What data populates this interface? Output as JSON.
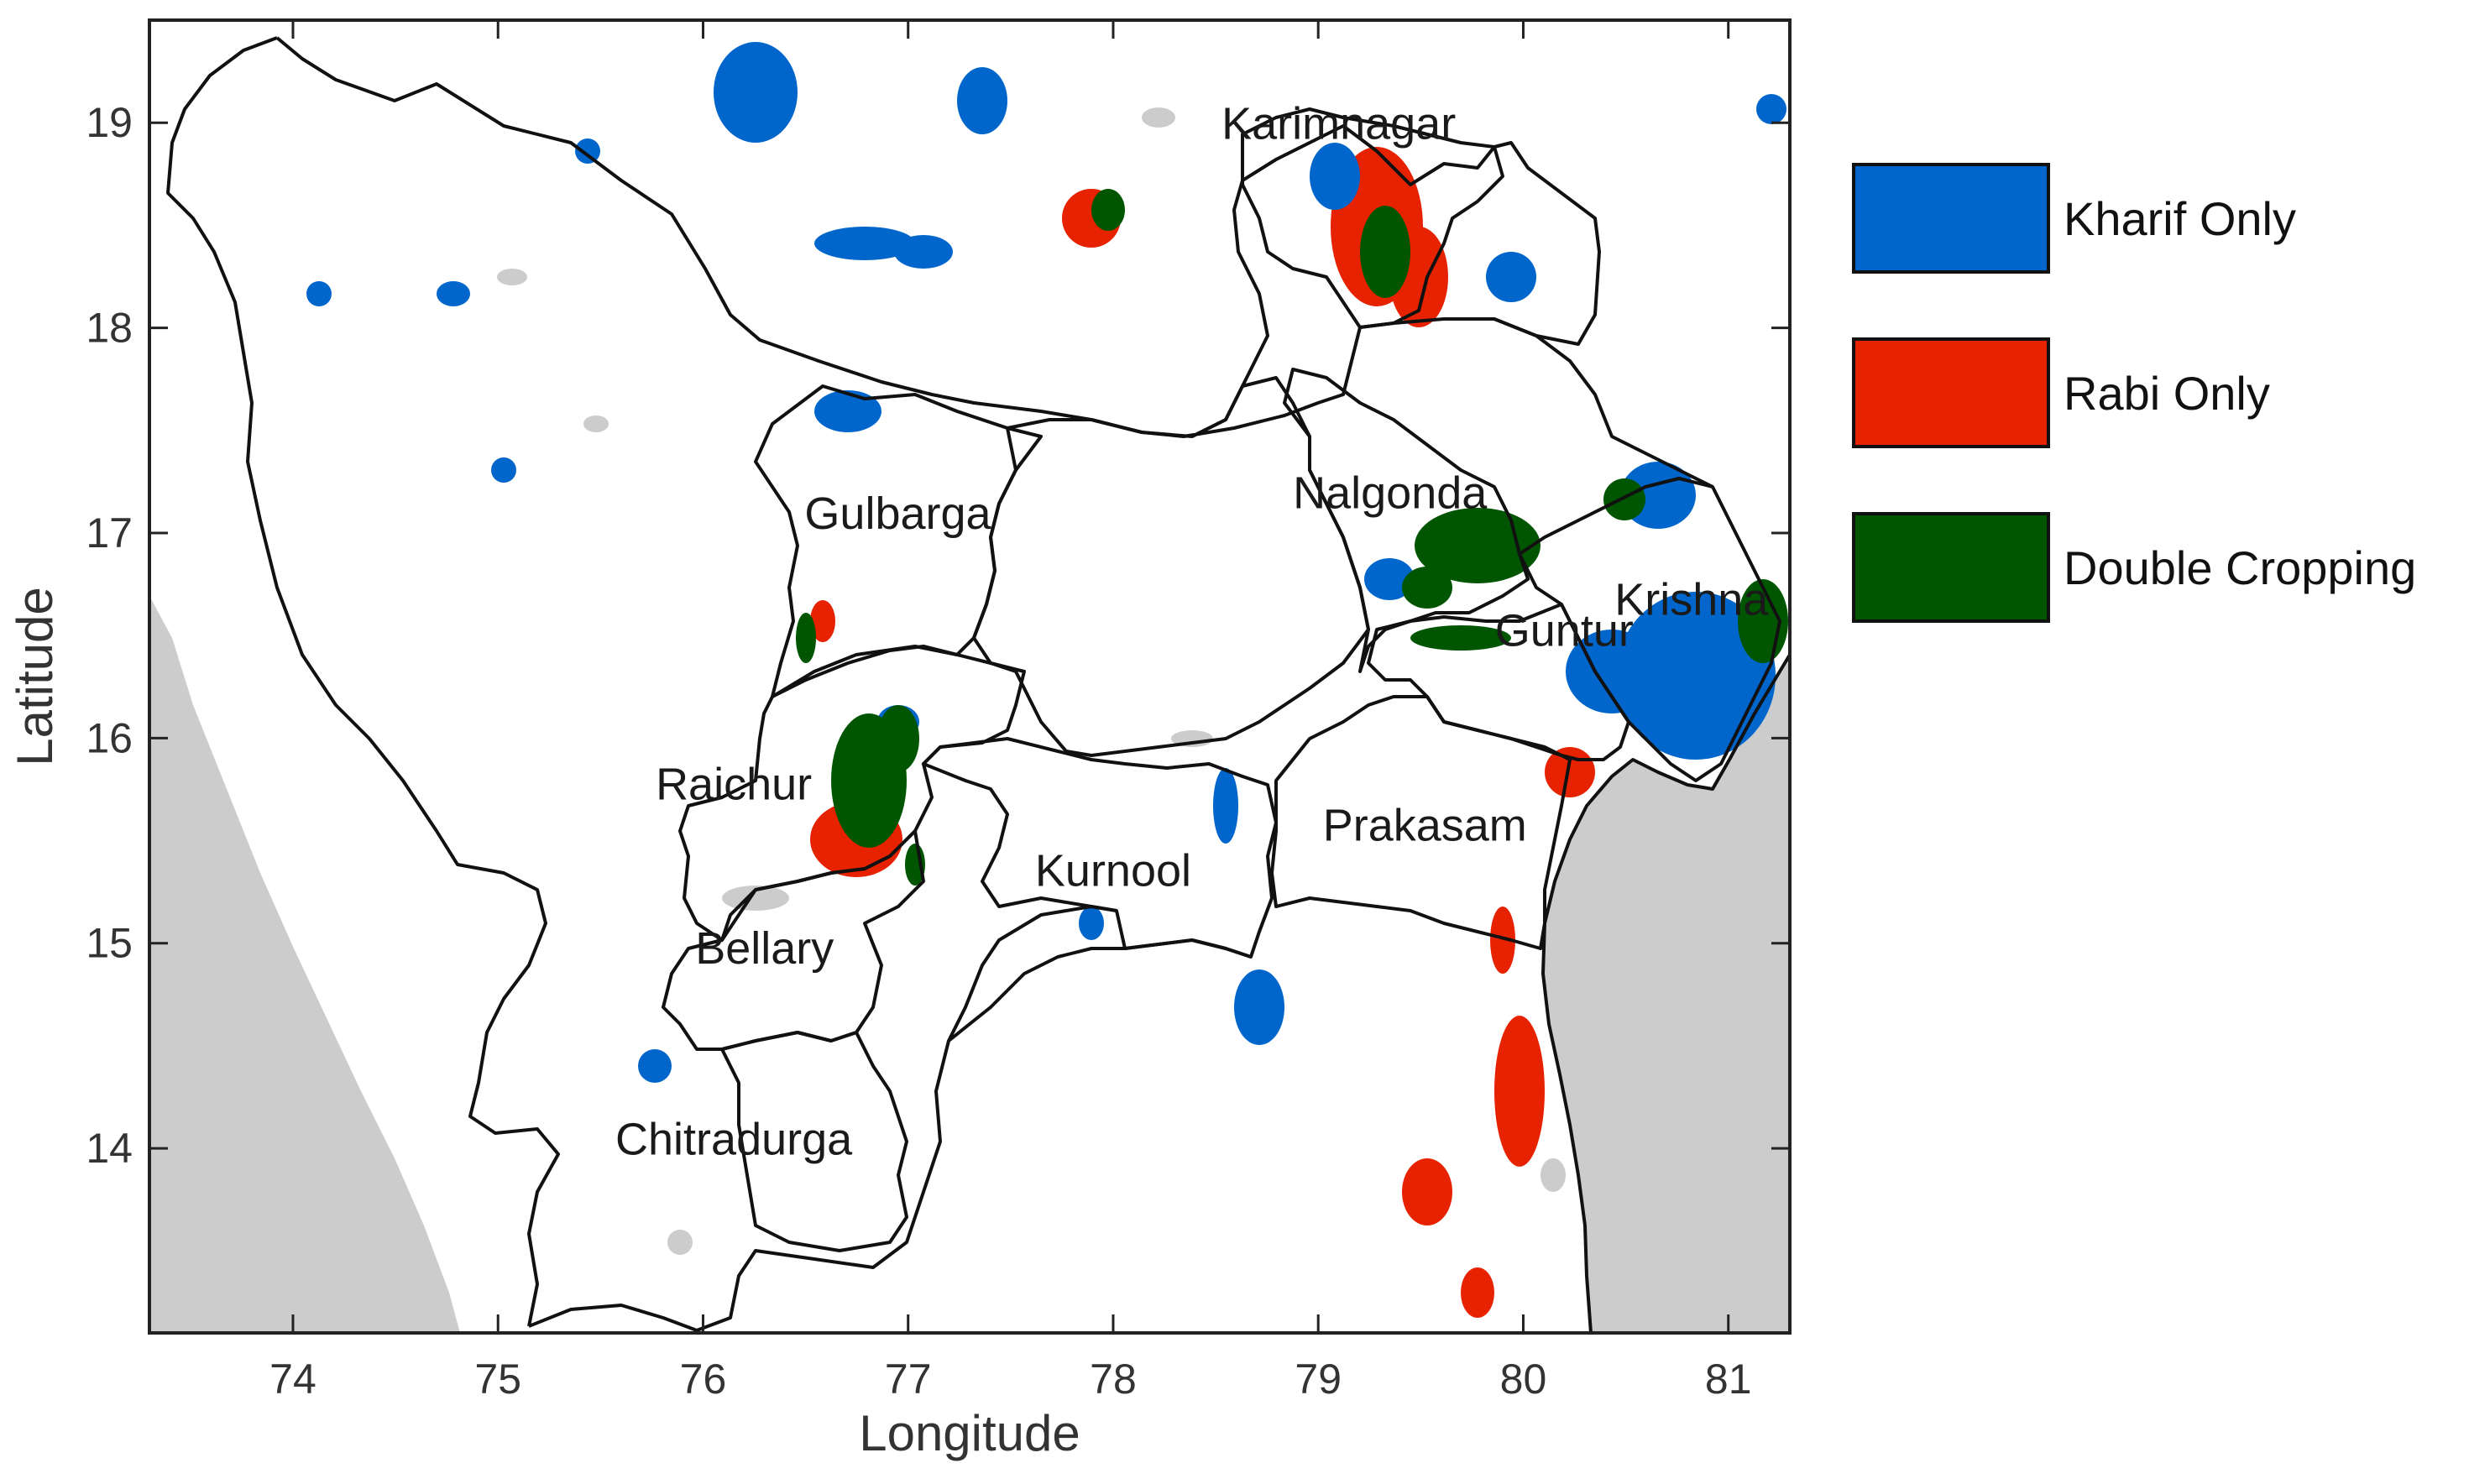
{
  "map": {
    "xlabel": "Longitude",
    "ylabel": "Latitude",
    "xlim": [
      73.3,
      81.3
    ],
    "ylim": [
      13.1,
      19.5
    ],
    "xticks": [
      74,
      75,
      76,
      77,
      78,
      79,
      80,
      81
    ],
    "yticks": [
      14,
      15,
      16,
      17,
      18,
      19
    ],
    "background_color": "#ffffff",
    "sea_color": "#cccccc",
    "boundary_color": "#111111"
  },
  "legend": {
    "placement": "right",
    "items": [
      {
        "label": "Kharif Only",
        "color": "#0066cc"
      },
      {
        "label": "Rabi Only",
        "color": "#e62200"
      },
      {
        "label": "Double Cropping",
        "color": "#005500"
      }
    ]
  },
  "districts": [
    {
      "name": "Karimnagar",
      "lon": 79.1,
      "lat": 18.92
    },
    {
      "name": "Gulbarga",
      "lon": 76.95,
      "lat": 17.02
    },
    {
      "name": "Nalgonda",
      "lon": 79.35,
      "lat": 17.12
    },
    {
      "name": "Krishna",
      "lon": 80.82,
      "lat": 16.6
    },
    {
      "name": "Guntur",
      "lon": 80.2,
      "lat": 16.45
    },
    {
      "name": "Raichur",
      "lon": 76.15,
      "lat": 15.7
    },
    {
      "name": "Prakasam",
      "lon": 79.52,
      "lat": 15.5
    },
    {
      "name": "Kurnool",
      "lon": 78.0,
      "lat": 15.28
    },
    {
      "name": "Bellary",
      "lon": 76.3,
      "lat": 14.9
    },
    {
      "name": "Chitradurga",
      "lon": 76.15,
      "lat": 13.97
    }
  ]
}
